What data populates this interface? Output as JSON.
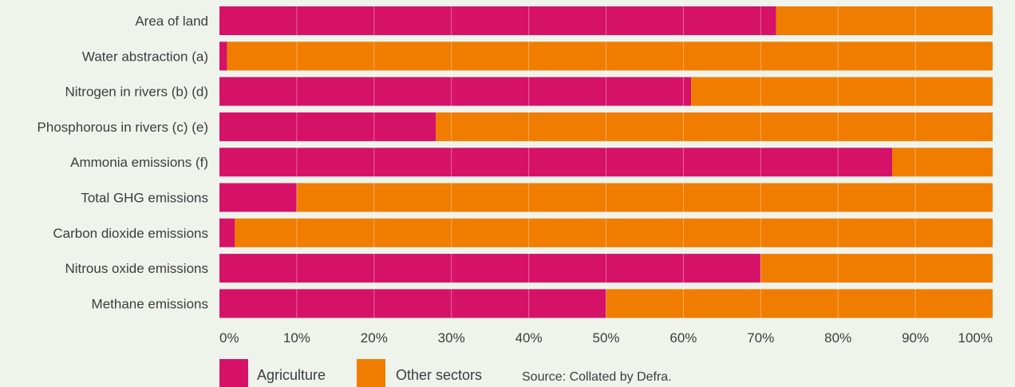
{
  "chart_data": {
    "type": "bar",
    "orientation": "horizontal",
    "stacked": true,
    "categories": [
      "Area of land",
      "Water abstraction (a)",
      "Nitrogen in rivers (b) (d)",
      "Phosphorous in rivers (c) (e)",
      "Ammonia emissions (f)",
      "Total GHG emissions",
      "Carbon dioxide emissions",
      "Nitrous oxide emissions",
      "Methane emissions"
    ],
    "series": [
      {
        "name": "Agriculture",
        "color": "#d61268",
        "values": [
          72,
          1,
          61,
          28,
          87,
          10,
          2,
          70,
          50
        ]
      },
      {
        "name": "Other sectors",
        "color": "#f07d00",
        "values": [
          28,
          99,
          39,
          72,
          13,
          90,
          98,
          30,
          50
        ]
      }
    ],
    "xlim": [
      0,
      100
    ],
    "x_ticks": [
      0,
      10,
      20,
      30,
      40,
      50,
      60,
      70,
      80,
      90,
      100
    ],
    "x_tick_labels": [
      "0%",
      "10%",
      "20%",
      "30%",
      "40%",
      "50%",
      "60%",
      "70%",
      "80%",
      "90%",
      "100%"
    ],
    "grid": true,
    "legend": "bottom"
  },
  "source_note": "Source: Collated by Defra."
}
